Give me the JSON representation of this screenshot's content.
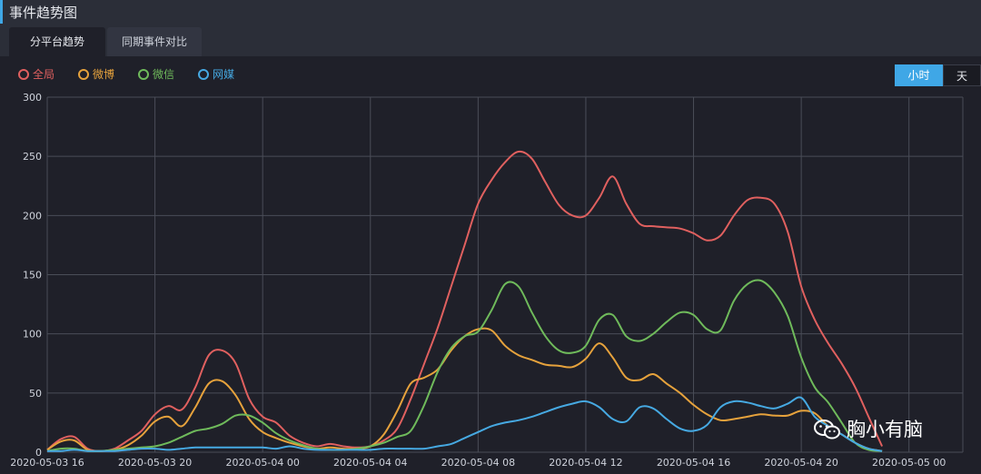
{
  "panel_title": "事件趋势图",
  "tabs": [
    {
      "label": "分平台趋势"
    },
    {
      "label": "同期事件对比"
    }
  ],
  "granularity": {
    "hour": "小时",
    "day": "天",
    "selected": "小时"
  },
  "watermark": {
    "text": "胸小有脑"
  },
  "colors": {
    "accent": "#3fa7e6",
    "gridline": "#4a4d58",
    "axis_text": "#cfd3dc"
  },
  "chart_data": {
    "type": "line",
    "title": "",
    "xlabel": "",
    "ylabel": "",
    "ylim": [
      0,
      300
    ],
    "yticks": [
      0,
      50,
      100,
      150,
      200,
      250,
      300
    ],
    "x_tick_labels": [
      {
        "hour": 0,
        "label": "2020-05-03 16"
      },
      {
        "hour": 4,
        "label": "2020-05-03 20"
      },
      {
        "hour": 8,
        "label": "2020-05-04 00"
      },
      {
        "hour": 12,
        "label": "2020-05-04 04"
      },
      {
        "hour": 16,
        "label": "2020-05-04 08"
      },
      {
        "hour": 20,
        "label": "2020-05-04 12"
      },
      {
        "hour": 24,
        "label": "2020-05-04 16"
      },
      {
        "hour": 28,
        "label": "2020-05-04 20"
      },
      {
        "hour": 32,
        "label": "2020-05-05 00"
      }
    ],
    "x_hours": [
      0,
      0.5,
      1,
      1.5,
      2,
      2.5,
      3,
      3.5,
      4,
      4.5,
      5,
      5.5,
      6,
      6.5,
      7,
      7.5,
      8,
      8.5,
      9,
      9.5,
      10,
      10.5,
      11,
      11.5,
      12,
      12.5,
      13,
      13.5,
      14,
      14.5,
      15,
      15.5,
      16,
      16.5,
      17,
      17.5,
      18,
      18.5,
      19,
      19.5,
      20,
      20.5,
      21,
      21.5,
      22,
      22.5,
      23,
      23.5,
      24,
      24.5,
      25,
      25.5,
      26,
      26.5,
      27,
      27.5,
      28,
      28.5,
      29,
      29.5,
      30,
      30.5,
      31,
      31.5,
      32,
      32.5,
      33,
      33.5,
      34
    ],
    "series": [
      {
        "name": "全局",
        "color": "#e0605f",
        "values": [
          2,
          11,
          13,
          3,
          1,
          3,
          10,
          18,
          32,
          39,
          36,
          55,
          82,
          86,
          75,
          45,
          30,
          25,
          14,
          8,
          5,
          7,
          5,
          4,
          5,
          10,
          20,
          45,
          75,
          105,
          140,
          175,
          210,
          230,
          245,
          254,
          248,
          228,
          209,
          200,
          200,
          215,
          233,
          210,
          193,
          191,
          190,
          189,
          185,
          179,
          183,
          200,
          213,
          215,
          210,
          186,
          140,
          112,
          92,
          75,
          55,
          30,
          5
        ],
        "x_start": 0
      },
      {
        "name": "微博",
        "color": "#e6a23c",
        "values": [
          2,
          9,
          10,
          2,
          1,
          2,
          6,
          14,
          26,
          30,
          22,
          38,
          58,
          60,
          48,
          28,
          17,
          12,
          8,
          5,
          3,
          4,
          3,
          3,
          5,
          15,
          35,
          58,
          63,
          70,
          86,
          98,
          104,
          103,
          90,
          82,
          78,
          74,
          73,
          72,
          79,
          92,
          80,
          63,
          61,
          66,
          58,
          50,
          40,
          32,
          27,
          28,
          30,
          32,
          31,
          31,
          35,
          33,
          22,
          15,
          8,
          3,
          1
        ],
        "x_start": 0
      },
      {
        "name": "微信",
        "color": "#6fba5b",
        "values": [
          1,
          3,
          3,
          1,
          1,
          2,
          3,
          4,
          5,
          8,
          13,
          18,
          20,
          24,
          31,
          31,
          25,
          16,
          10,
          6,
          3,
          2,
          2,
          3,
          5,
          8,
          13,
          18,
          40,
          68,
          88,
          98,
          102,
          120,
          142,
          140,
          118,
          98,
          86,
          84,
          90,
          112,
          116,
          98,
          94,
          100,
          110,
          118,
          116,
          104,
          103,
          128,
          142,
          145,
          135,
          115,
          80,
          55,
          42,
          25,
          8,
          2,
          1
        ],
        "x_start": 0
      },
      {
        "name": "网媒",
        "color": "#46a9e2",
        "values": [
          1,
          1,
          2,
          1,
          1,
          1,
          2,
          3,
          3,
          2,
          3,
          4,
          4,
          4,
          4,
          4,
          4,
          3,
          5,
          3,
          2,
          2,
          2,
          2,
          2,
          3,
          3,
          3,
          3,
          5,
          7,
          12,
          17,
          22,
          25,
          27,
          30,
          34,
          38,
          41,
          43,
          38,
          28,
          26,
          38,
          37,
          28,
          20,
          18,
          23,
          38,
          43,
          42,
          39,
          37,
          41,
          46,
          30,
          22,
          15,
          8,
          3,
          1
        ],
        "x_start": 0
      }
    ]
  }
}
